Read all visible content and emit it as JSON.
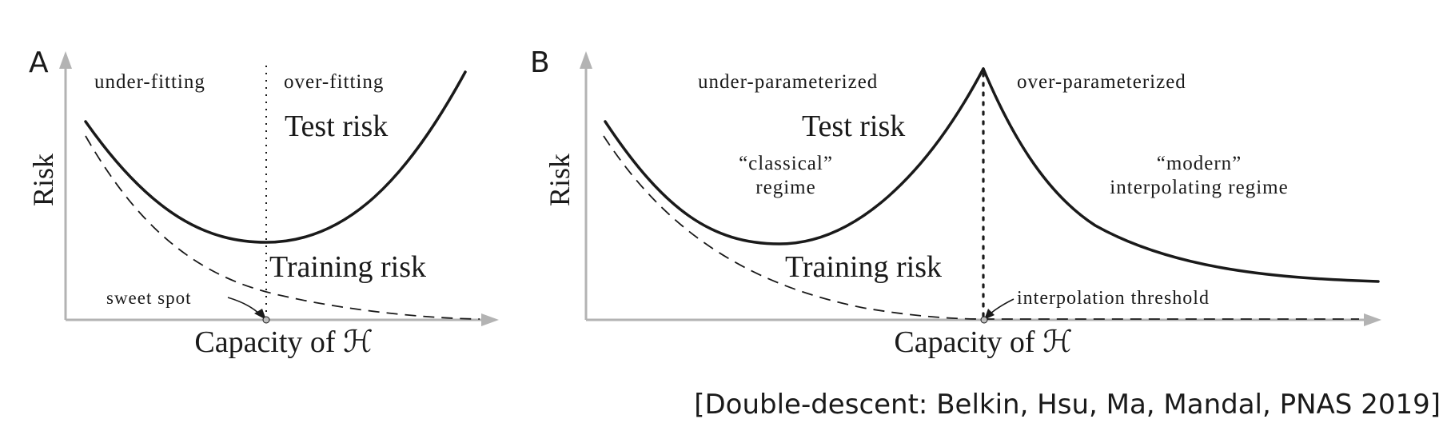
{
  "panel_a": {
    "label": "A",
    "y_axis_label": "Risk",
    "x_axis_label": "Capacity of ℋ",
    "region_left": "under-fitting",
    "region_right": "over-fitting",
    "test_label": "Test risk",
    "train_label": "Training risk",
    "sweet_spot_label": "sweet spot"
  },
  "panel_b": {
    "label": "B",
    "y_axis_label": "Risk",
    "x_axis_label": "Capacity of ℋ",
    "region_left": "under-parameterized",
    "region_right": "over-parameterized",
    "test_label": "Test risk",
    "train_label": "Training risk",
    "classical_line1": "“classical”",
    "classical_line2": "regime",
    "modern_line1": "“modern”",
    "modern_line2": "interpolating regime",
    "threshold_label": "interpolation threshold"
  },
  "citation": "[Double-descent: Belkin, Hsu, Ma, Mandal, PNAS 2019]"
}
